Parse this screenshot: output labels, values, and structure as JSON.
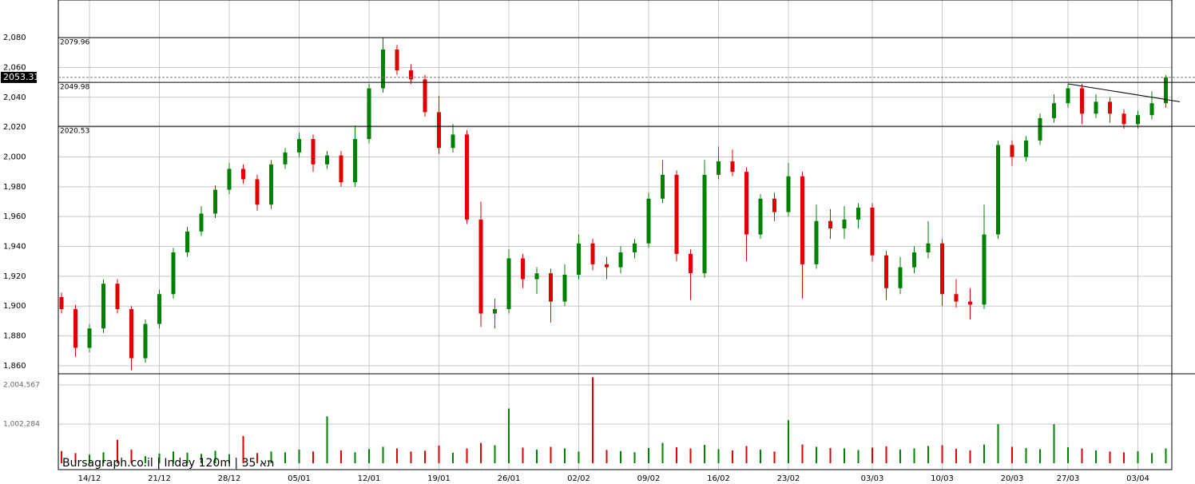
{
  "chart_data": {
    "type": "candlestick",
    "watermark": "Bursagraph.co.il | Inday 120m | 35 תא",
    "categories": [
      null,
      null,
      "14/12",
      null,
      null,
      null,
      null,
      "21/12",
      null,
      null,
      null,
      null,
      "28/12",
      null,
      null,
      null,
      null,
      "05/01",
      null,
      null,
      null,
      null,
      "12/01",
      null,
      null,
      null,
      null,
      "19/01",
      null,
      null,
      null,
      null,
      "26/01",
      null,
      null,
      null,
      null,
      "02/02",
      null,
      null,
      null,
      null,
      "09/02",
      null,
      null,
      null,
      null,
      "16/02",
      null,
      null,
      null,
      null,
      "23/02",
      null,
      null,
      null,
      null,
      null,
      "03/03",
      null,
      null,
      null,
      null,
      "10/03",
      null,
      null,
      null,
      null,
      "20/03",
      null,
      null,
      null,
      "27/03",
      null,
      null,
      null,
      null,
      "03/04",
      null,
      null
    ],
    "open": [
      1906,
      1898,
      1872,
      1885,
      1915,
      1898,
      1865,
      1888,
      1908,
      1936,
      1950,
      1962,
      1978,
      1992,
      1985,
      1968,
      1995,
      2003,
      2012,
      1995,
      2001,
      1983,
      2012,
      2046,
      2072,
      2058,
      2052,
      2030,
      2006,
      2015,
      1958,
      1895,
      1898,
      1932,
      1918,
      1922,
      1903,
      1921,
      1942,
      1928,
      1926,
      1936,
      1942,
      1972,
      1988,
      1935,
      1922,
      1988,
      1997,
      1990,
      1948,
      1972,
      1963,
      1987,
      1928,
      1957,
      1952,
      1958,
      1966,
      1934,
      1912,
      1926,
      1936,
      1942,
      1908,
      1903,
      1901,
      1948,
      2008,
      2000,
      2011,
      2026,
      2036,
      2046,
      2029,
      2037,
      2029,
      2022,
      2028,
      2036
    ],
    "high": [
      1909,
      1901,
      1888,
      1918,
      1918,
      1900,
      1891,
      1911,
      1939,
      1953,
      1967,
      1981,
      1996,
      1995,
      1988,
      1998,
      2006,
      2016,
      2015,
      2004,
      2004,
      2021,
      2049,
      2080,
      2075,
      2062,
      2055,
      2041,
      2022,
      2018,
      1970,
      1905,
      1938,
      1935,
      1926,
      1925,
      1928,
      1948,
      1945,
      1933,
      1940,
      1945,
      1976,
      1998,
      1991,
      1938,
      1998,
      2007,
      2005,
      1993,
      1975,
      1976,
      1996,
      1990,
      1968,
      1965,
      1967,
      1969,
      1969,
      1937,
      1933,
      1940,
      1957,
      1945,
      1918,
      1912,
      1968,
      2011,
      2011,
      2014,
      2029,
      2042,
      2049,
      2049,
      2042,
      2040,
      2032,
      2031,
      2044,
      2055
    ],
    "low": [
      1895,
      1866,
      1869,
      1882,
      1895,
      1857,
      1862,
      1885,
      1905,
      1933,
      1947,
      1959,
      1975,
      1982,
      1964,
      1965,
      1992,
      2000,
      1990,
      1992,
      1980,
      1980,
      2009,
      2043,
      2055,
      2049,
      2027,
      2002,
      2003,
      1955,
      1886,
      1885,
      1895,
      1912,
      1908,
      1889,
      1900,
      1918,
      1924,
      1918,
      1922,
      1932,
      1939,
      1969,
      1930,
      1904,
      1919,
      1985,
      1987,
      1930,
      1945,
      1957,
      1960,
      1905,
      1925,
      1945,
      1945,
      1952,
      1930,
      1904,
      1908,
      1922,
      1932,
      1900,
      1899,
      1891,
      1898,
      1945,
      1994,
      1997,
      2008,
      2023,
      2033,
      2022,
      2026,
      2023,
      2019,
      2019,
      2025,
      2033
    ],
    "close": [
      1898,
      1872,
      1885,
      1915,
      1898,
      1865,
      1888,
      1908,
      1936,
      1950,
      1962,
      1978,
      1992,
      1985,
      1968,
      1995,
      2003,
      2012,
      1995,
      2001,
      1983,
      2012,
      2046,
      2072,
      2058,
      2052,
      2030,
      2006,
      2015,
      1958,
      1895,
      1898,
      1932,
      1918,
      1922,
      1903,
      1921,
      1942,
      1928,
      1926,
      1936,
      1942,
      1972,
      1988,
      1935,
      1922,
      1988,
      1997,
      1990,
      1948,
      1972,
      1963,
      1987,
      1928,
      1957,
      1952,
      1958,
      1966,
      1934,
      1912,
      1926,
      1936,
      1942,
      1908,
      1903,
      1901,
      1948,
      2008,
      2000,
      2011,
      2026,
      2036,
      2046,
      2029,
      2037,
      2029,
      2022,
      2028,
      2036,
      2053.31
    ],
    "volume": [
      310000,
      260000,
      220000,
      280000,
      600000,
      350000,
      180000,
      250000,
      300000,
      270000,
      240000,
      320000,
      230000,
      700000,
      260000,
      300000,
      280000,
      350000,
      300000,
      1200000,
      330000,
      280000,
      360000,
      420000,
      380000,
      300000,
      320000,
      450000,
      270000,
      380000,
      520000,
      460000,
      1400000,
      400000,
      350000,
      420000,
      380000,
      300000,
      2200000,
      340000,
      310000,
      280000,
      390000,
      520000,
      410000,
      380000,
      470000,
      360000,
      330000,
      440000,
      350000,
      300000,
      1100000,
      480000,
      420000,
      390000,
      380000,
      340000,
      400000,
      430000,
      350000,
      380000,
      440000,
      460000,
      370000,
      330000,
      480000,
      1000000,
      420000,
      390000,
      360000,
      1000000,
      410000,
      380000,
      330000,
      300000,
      280000,
      310000,
      260000,
      380000
    ],
    "up_color": "#008000",
    "down_color": "#e00000",
    "ylim": [
      1854.6,
      2105.2
    ],
    "yticks": [
      {
        "value": 1860,
        "label": "1,860"
      },
      {
        "value": 1880,
        "label": "1,880"
      },
      {
        "value": 1900,
        "label": "1,900"
      },
      {
        "value": 1920,
        "label": "1,920"
      },
      {
        "value": 1940,
        "label": "1,940"
      },
      {
        "value": 1960,
        "label": "1,960"
      },
      {
        "value": 1980,
        "label": "1,980"
      },
      {
        "value": 2000,
        "label": "2,000"
      },
      {
        "value": 2020,
        "label": "2,020"
      },
      {
        "value": 2040,
        "label": "2,040"
      },
      {
        "value": 2060,
        "label": "2,060"
      },
      {
        "value": 2080,
        "label": "2,080"
      }
    ],
    "volume_ylim": [
      0,
      2290000
    ],
    "volume_yticks": [
      {
        "value": 1002284,
        "label": "1,002,284"
      },
      {
        "value": 2004567,
        "label": "2,004,567"
      }
    ],
    "levels": [
      2079.96,
      2049.98,
      2020.53
    ],
    "trendline": {
      "x": [
        72,
        80
      ],
      "y": [
        2049,
        2037
      ]
    },
    "grid": true
  }
}
